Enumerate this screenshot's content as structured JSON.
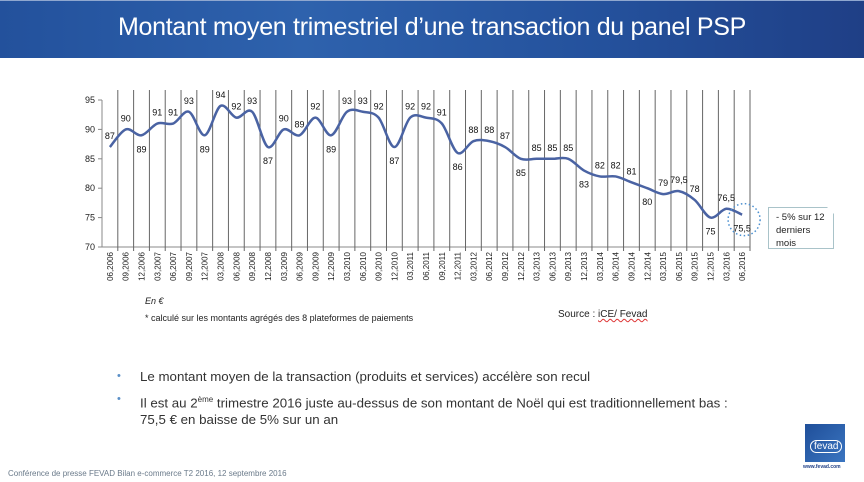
{
  "header": {
    "title": "Montant moyen trimestriel d’une transaction du panel PSP"
  },
  "chart_data": {
    "type": "line",
    "title": "",
    "xlabel": "",
    "ylabel": "",
    "ylim": [
      70,
      95
    ],
    "yticks": [
      70,
      75,
      80,
      85,
      90,
      95
    ],
    "grid": "vertical",
    "line_color": "#4a63a3",
    "categories": [
      "06,2006",
      "09,2006",
      "12,2006",
      "03,2007",
      "06,2007",
      "09,2007",
      "12,2007",
      "03,2008",
      "06,2008",
      "09,2008",
      "12,2008",
      "03,2009",
      "06,2009",
      "09,2009",
      "12,2009",
      "03,2010",
      "06,2010",
      "09,2010",
      "12,2010",
      "03,2011",
      "06,2011",
      "09,2011",
      "12,2011",
      "03,2012",
      "06,2012",
      "09,2012",
      "12,2012",
      "03,2013",
      "06,2013",
      "09,2013",
      "12,2013",
      "03,2014",
      "06,2014",
      "09,2014",
      "12,2014",
      "03,2015",
      "06,2015",
      "09,2015",
      "12,2015",
      "03,2016",
      "06,2016"
    ],
    "values": [
      87,
      90,
      89,
      91,
      91,
      93,
      89,
      94,
      92,
      93,
      87,
      90,
      89,
      92,
      89,
      93,
      93,
      92,
      87,
      92,
      92,
      91,
      86,
      88,
      88,
      87,
      85,
      85,
      85,
      85,
      83,
      82,
      82,
      81,
      80,
      79,
      79.5,
      78,
      75,
      76.5,
      75.5
    ],
    "value_labels": [
      "87",
      "90",
      "89",
      "91",
      "91",
      "93",
      "89",
      "94",
      "92",
      "93",
      "87",
      "90",
      "89",
      "92",
      "89",
      "93",
      "93",
      "92",
      "87",
      "92",
      "92",
      "91",
      "86",
      "88",
      "88",
      "87",
      "85",
      "85",
      "85",
      "85",
      "83",
      "82",
      "82",
      "81",
      "80",
      "79",
      "79,5",
      "78",
      "75",
      "76,5",
      "75,5"
    ]
  },
  "callout": {
    "line1": "- 5% sur 12",
    "line2": "derniers mois"
  },
  "notes": {
    "unit": "En €",
    "footnote": "* calculé sur les montants agrégés des 8 plateformes de paiements",
    "source_prefix": "Source : ",
    "source_name": "iCE/ Fevad"
  },
  "bullets": [
    {
      "text": "Le montant moyen de la transaction (produits et services) accélère son recul"
    },
    {
      "pre": "Il est au 2",
      "sup": "ème",
      "post": " trimestre 2016 juste au-dessus de son montant de Noël qui est traditionnellement bas : 75,5 € en baisse de 5% sur un an"
    }
  ],
  "bullet_char": "•",
  "footer": {
    "text": "Conférence de presse FEVAD Bilan e-commerce T2 2016, 12 septembre 2016"
  },
  "logo": {
    "name": "fevad",
    "url": "www.fevad.com"
  }
}
